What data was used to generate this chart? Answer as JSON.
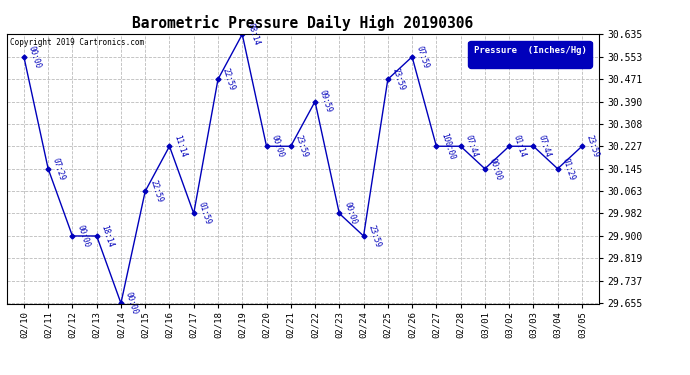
{
  "title": "Barometric Pressure Daily High 20190306",
  "copyright_text": "Copyright 2019 Cartronics.com",
  "legend_label": "Pressure  (Inches/Hg)",
  "line_color": "#0000BB",
  "background_color": "#ffffff",
  "grid_color": "#aaaaaa",
  "ylim": [
    29.655,
    30.635
  ],
  "yticks": [
    29.655,
    29.737,
    29.819,
    29.9,
    29.982,
    30.063,
    30.145,
    30.227,
    30.308,
    30.39,
    30.471,
    30.553,
    30.635
  ],
  "dates": [
    "02/10",
    "02/11",
    "02/12",
    "02/13",
    "02/14",
    "02/15",
    "02/16",
    "02/17",
    "02/18",
    "02/19",
    "02/20",
    "02/21",
    "02/22",
    "02/23",
    "02/24",
    "02/25",
    "02/26",
    "02/27",
    "02/28",
    "03/01",
    "03/02",
    "03/03",
    "03/04",
    "03/05"
  ],
  "values": [
    30.553,
    30.145,
    29.9,
    29.9,
    29.655,
    30.063,
    30.227,
    29.982,
    30.471,
    30.635,
    30.227,
    30.227,
    30.39,
    29.982,
    29.9,
    30.471,
    30.553,
    30.227,
    30.227,
    30.145,
    30.227,
    30.227,
    30.145,
    30.227
  ],
  "annotations": [
    {
      "idx": 0,
      "label": "00:00"
    },
    {
      "idx": 1,
      "label": "07:29"
    },
    {
      "idx": 2,
      "label": "00:00"
    },
    {
      "idx": 3,
      "label": "18:14"
    },
    {
      "idx": 4,
      "label": "00:00"
    },
    {
      "idx": 5,
      "label": "22:59"
    },
    {
      "idx": 6,
      "label": "11:14"
    },
    {
      "idx": 7,
      "label": "01:59"
    },
    {
      "idx": 8,
      "label": "22:59"
    },
    {
      "idx": 9,
      "label": "08:14"
    },
    {
      "idx": 10,
      "label": "00:00"
    },
    {
      "idx": 11,
      "label": "23:59"
    },
    {
      "idx": 12,
      "label": "09:59"
    },
    {
      "idx": 13,
      "label": "00:00"
    },
    {
      "idx": 14,
      "label": "23:59"
    },
    {
      "idx": 15,
      "label": "23:59"
    },
    {
      "idx": 16,
      "label": "07:59"
    },
    {
      "idx": 17,
      "label": "100:00"
    },
    {
      "idx": 18,
      "label": "07:44"
    },
    {
      "idx": 19,
      "label": "00:00"
    },
    {
      "idx": 20,
      "label": "01:14"
    },
    {
      "idx": 21,
      "label": "07:44"
    },
    {
      "idx": 22,
      "label": "01:29"
    },
    {
      "idx": 23,
      "label": "23:59"
    }
  ]
}
